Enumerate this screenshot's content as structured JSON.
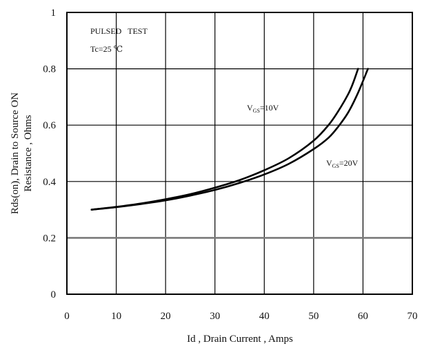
{
  "chart_data": {
    "type": "line",
    "xlabel": "Id , Drain Current , Amps",
    "ylabel_line1": "Rds(on), Drain to Source ON",
    "ylabel_line2": "Resistance , Ohms",
    "xlim": [
      0,
      70
    ],
    "ylim": [
      0,
      1
    ],
    "x_ticks": [
      "0",
      "10",
      "20",
      "30",
      "40",
      "50",
      "60",
      "70"
    ],
    "y_ticks": [
      "0",
      "0.2",
      "0.4",
      "0.6",
      "0.8",
      "1"
    ],
    "grid": true,
    "annotations": {
      "line1": "PULSED   TEST",
      "line2": "Tc=25 ℃"
    },
    "series": [
      {
        "name": "V",
        "name_sub": "GS",
        "name_suffix": "=10V",
        "x": [
          5,
          10,
          15,
          20,
          25,
          30,
          35,
          40,
          45,
          50,
          53,
          55,
          57,
          58,
          59
        ],
        "y": [
          0.3,
          0.31,
          0.322,
          0.337,
          0.355,
          0.378,
          0.405,
          0.44,
          0.483,
          0.545,
          0.6,
          0.65,
          0.71,
          0.75,
          0.8
        ]
      },
      {
        "name": "V",
        "name_sub": "GS",
        "name_suffix": "=20V",
        "x": [
          5,
          10,
          15,
          20,
          25,
          30,
          35,
          40,
          45,
          50,
          53,
          55,
          57,
          59,
          61
        ],
        "y": [
          0.3,
          0.309,
          0.32,
          0.333,
          0.35,
          0.37,
          0.395,
          0.425,
          0.463,
          0.515,
          0.555,
          0.595,
          0.645,
          0.715,
          0.8
        ]
      }
    ]
  }
}
